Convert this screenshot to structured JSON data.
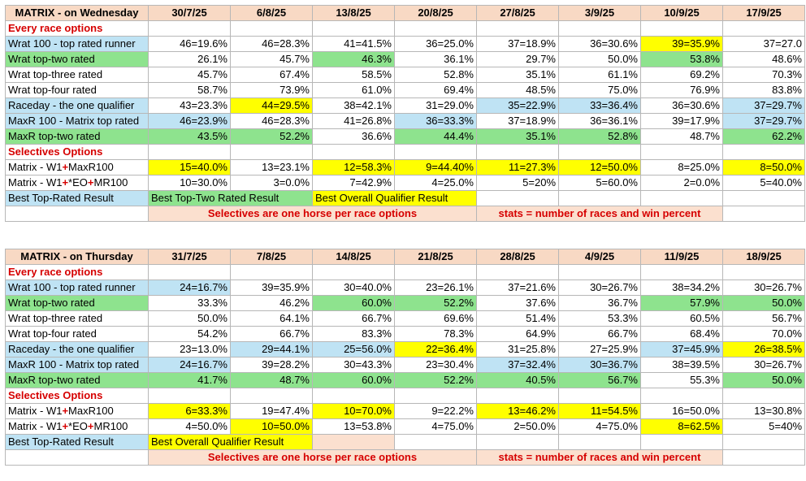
{
  "colors": {
    "header_peach": "#f8d9c4",
    "blue": "#bfe3f4",
    "green": "#8ee38e",
    "yellow": "#ffff00",
    "section_red": "#d60000"
  },
  "tables": [
    {
      "title": "MATRIX - on Wednesday",
      "dates": [
        "30/7/25",
        "6/8/25",
        "13/8/25",
        "20/8/25",
        "27/8/25",
        "3/9/25",
        "10/9/25",
        "17/9/25"
      ],
      "section1": "Every race options",
      "rows1": [
        {
          "label": "Wrat 100 - top rated runner",
          "label_color": "blue",
          "cells": [
            "46=19.6%",
            "46=28.3%",
            "41=41.5%",
            "36=25.0%",
            "37=18.9%",
            "36=30.6%",
            "39=35.9%",
            "37=27.0"
          ],
          "hl": [
            "",
            "",
            "",
            "",
            "",
            "",
            "yellow",
            ""
          ]
        },
        {
          "label": "Wrat top-two rated",
          "label_color": "green",
          "cells": [
            "26.1%",
            "45.7%",
            "46.3%",
            "36.1%",
            "29.7%",
            "50.0%",
            "53.8%",
            "48.6%"
          ],
          "hl": [
            "",
            "",
            "green",
            "",
            "",
            "",
            "green",
            ""
          ]
        },
        {
          "label": "Wrat top-three rated",
          "label_color": "",
          "cells": [
            "45.7%",
            "67.4%",
            "58.5%",
            "52.8%",
            "35.1%",
            "61.1%",
            "69.2%",
            "70.3%"
          ],
          "hl": [
            "",
            "",
            "",
            "",
            "",
            "",
            "",
            ""
          ]
        },
        {
          "label": "Wrat top-four rated",
          "label_color": "",
          "cells": [
            "58.7%",
            "73.9%",
            "61.0%",
            "69.4%",
            "48.5%",
            "75.0%",
            "76.9%",
            "83.8%"
          ],
          "hl": [
            "",
            "",
            "",
            "",
            "",
            "",
            "",
            ""
          ]
        },
        {
          "label": "Raceday - the one qualifier",
          "label_color": "blue",
          "cells": [
            "43=23.3%",
            "44=29.5%",
            "38=42.1%",
            "31=29.0%",
            "35=22.9%",
            "33=36.4%",
            "36=30.6%",
            "37=29.7%"
          ],
          "hl": [
            "",
            "yellow",
            "",
            "",
            "blue",
            "blue",
            "",
            "blue"
          ]
        },
        {
          "label": "MaxR 100 - Matrix top rated",
          "label_color": "blue",
          "cells": [
            "46=23.9%",
            "46=28.3%",
            "41=26.8%",
            "36=33.3%",
            "37=18.9%",
            "36=36.1%",
            "39=17.9%",
            "37=29.7%"
          ],
          "hl": [
            "blue",
            "",
            "",
            "blue",
            "",
            "",
            "",
            "blue"
          ]
        },
        {
          "label": "MaxR top-two rated",
          "label_color": "green",
          "cells": [
            "43.5%",
            "52.2%",
            "36.6%",
            "44.4%",
            "35.1%",
            "52.8%",
            "48.7%",
            "62.2%"
          ],
          "hl": [
            "green",
            "green",
            "",
            "green",
            "green",
            "green",
            "",
            "green"
          ]
        }
      ],
      "section2": "Selectives Options",
      "sel1": {
        "prefix": "Matrix - W1",
        "plus1": "+",
        "mid": "MaxR100",
        "cells": [
          "15=40.0%",
          "13=23.1%",
          "12=58.3%",
          "9=44.40%",
          "11=27.3%",
          "12=50.0%",
          "8=25.0%",
          "8=50.0%"
        ],
        "hl": [
          "yellow",
          "",
          "yellow",
          "yellow",
          "yellow",
          "yellow",
          "",
          "yellow"
        ]
      },
      "sel2": {
        "prefix": "Matrix - W1",
        "plus1": "+",
        "mid": "*EO",
        "plus2": "+",
        "end": "MR100",
        "cells": [
          "10=30.0%",
          "3=0.0%",
          "7=42.9%",
          "4=25.0%",
          "5=20%",
          "5=60.0%",
          "2=0.0%",
          "5=40.0%"
        ],
        "hl": [
          "",
          "",
          "",
          "",
          "",
          "",
          "",
          ""
        ]
      },
      "legend": {
        "a": "Best Top-Rated Result",
        "b": "Best Top-Two Rated Result",
        "c": "Best Overall Qualifier Result"
      },
      "foot_left": "Selectives are one horse per race options",
      "foot_right": "stats = number of races and win percent"
    },
    {
      "title": "MATRIX - on Thursday",
      "dates": [
        "31/7/25",
        "7/8/25",
        "14/8/25",
        "21/8/25",
        "28/8/25",
        "4/9/25",
        "11/9/25",
        "18/9/25"
      ],
      "section1": "Every race options",
      "rows1": [
        {
          "label": "Wrat 100 - top rated runner",
          "label_color": "blue",
          "cells": [
            "24=16.7%",
            "39=35.9%",
            "30=40.0%",
            "23=26.1%",
            "37=21.6%",
            "30=26.7%",
            "38=34.2%",
            "30=26.7%"
          ],
          "hl": [
            "blue",
            "",
            "",
            "",
            "",
            "",
            "",
            ""
          ]
        },
        {
          "label": "Wrat top-two rated",
          "label_color": "green",
          "cells": [
            "33.3%",
            "46.2%",
            "60.0%",
            "52.2%",
            "37.6%",
            "36.7%",
            "57.9%",
            "50.0%"
          ],
          "hl": [
            "",
            "",
            "green",
            "green",
            "",
            "",
            "green",
            "green"
          ]
        },
        {
          "label": "Wrat top-three rated",
          "label_color": "",
          "cells": [
            "50.0%",
            "64.1%",
            "66.7%",
            "69.6%",
            "51.4%",
            "53.3%",
            "60.5%",
            "56.7%"
          ],
          "hl": [
            "",
            "",
            "",
            "",
            "",
            "",
            "",
            ""
          ]
        },
        {
          "label": "Wrat top-four rated",
          "label_color": "",
          "cells": [
            "54.2%",
            "66.7%",
            "83.3%",
            "78.3%",
            "64.9%",
            "66.7%",
            "68.4%",
            "70.0%"
          ],
          "hl": [
            "",
            "",
            "",
            "",
            "",
            "",
            "",
            ""
          ]
        },
        {
          "label": "Raceday - the one qualifier",
          "label_color": "blue",
          "cells": [
            "23=13.0%",
            "29=44.1%",
            "25=56.0%",
            "22=36.4%",
            "31=25.8%",
            "27=25.9%",
            "37=45.9%",
            "26=38.5%"
          ],
          "hl": [
            "",
            "blue",
            "blue",
            "yellow",
            "",
            "",
            "blue",
            "yellow"
          ]
        },
        {
          "label": "MaxR 100 - Matrix top rated",
          "label_color": "blue",
          "cells": [
            "24=16.7%",
            "39=28.2%",
            "30=43.3%",
            "23=30.4%",
            "37=32.4%",
            "30=36.7%",
            "38=39.5%",
            "30=26.7%"
          ],
          "hl": [
            "blue",
            "",
            "",
            "",
            "blue",
            "blue",
            "",
            ""
          ]
        },
        {
          "label": "MaxR top-two rated",
          "label_color": "green",
          "cells": [
            "41.7%",
            "48.7%",
            "60.0%",
            "52.2%",
            "40.5%",
            "56.7%",
            "55.3%",
            "50.0%"
          ],
          "hl": [
            "green",
            "green",
            "green",
            "green",
            "green",
            "green",
            "",
            "green"
          ]
        }
      ],
      "section2": "Selectives Options",
      "sel1": {
        "prefix": "Matrix - W1",
        "plus1": "+",
        "mid": "MaxR100",
        "cells": [
          "6=33.3%",
          "19=47.4%",
          "10=70.0%",
          "9=22.2%",
          "13=46.2%",
          "11=54.5%",
          "16=50.0%",
          "13=30.8%"
        ],
        "hl": [
          "yellow",
          "",
          "yellow",
          "",
          "yellow",
          "yellow",
          "",
          ""
        ]
      },
      "sel2": {
        "prefix": "Matrix - W1",
        "plus1": "+",
        "mid": "*EO",
        "plus2": "+",
        "end": "MR100",
        "cells": [
          "4=50.0%",
          "10=50.0%",
          "13=53.8%",
          "4=75.0%",
          "2=50.0%",
          "4=75.0%",
          "8=62.5%",
          "5=40%"
        ],
        "hl": [
          "",
          "yellow",
          "",
          "",
          "",
          "",
          "yellow",
          ""
        ]
      },
      "legend": {
        "a": "Best Top-Rated Result",
        "b": "Best Overall Qualifier Result",
        "c": ""
      },
      "foot_left": "Selectives are one horse per race options",
      "foot_right": "stats = number of races and win percent"
    }
  ]
}
